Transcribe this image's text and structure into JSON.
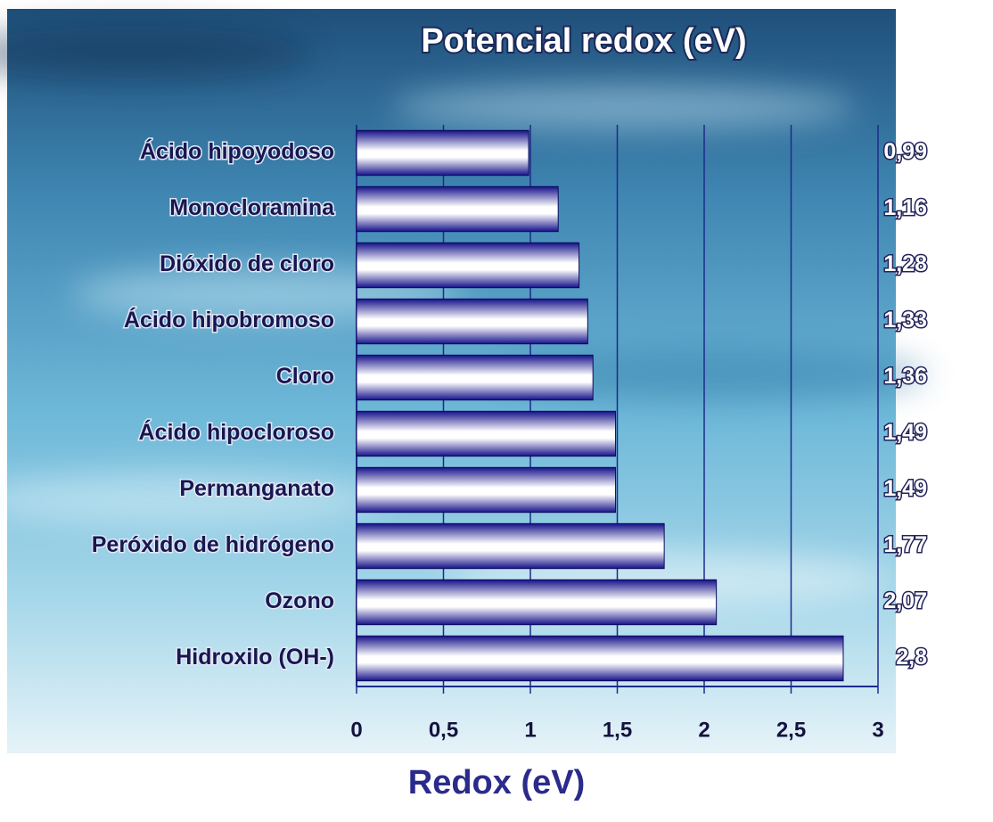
{
  "chart_data": {
    "type": "bar",
    "orientation": "horizontal",
    "title": "Potencial redox (eV)",
    "x_label": "Redox (eV)",
    "categories": [
      "Ácido hipoyodoso",
      "Monocloramina",
      "Dióxido de cloro",
      "Ácido hipobromoso",
      "Cloro",
      "Ácido hipocloroso",
      "Permanganato",
      "Peróxido de hidrógeno",
      "Ozono",
      "Hidroxilo (OH-)"
    ],
    "values": [
      0.99,
      1.16,
      1.28,
      1.33,
      1.36,
      1.49,
      1.49,
      1.77,
      2.07,
      2.8
    ],
    "value_labels": [
      "0,99",
      "1,16",
      "1,28",
      "1,33",
      "1,36",
      "1,49",
      "1,49",
      "1,77",
      "2,07",
      "2,8"
    ],
    "color": "#16128a",
    "xlim": [
      0,
      3
    ],
    "xticks": [
      0,
      {
        "value": 0.5,
        "label": "0,5"
      },
      1,
      {
        "value": 1.5,
        "label": "1,5"
      },
      2,
      {
        "value": 2.5,
        "label": "2,5"
      },
      3
    ],
    "grid": true
  }
}
